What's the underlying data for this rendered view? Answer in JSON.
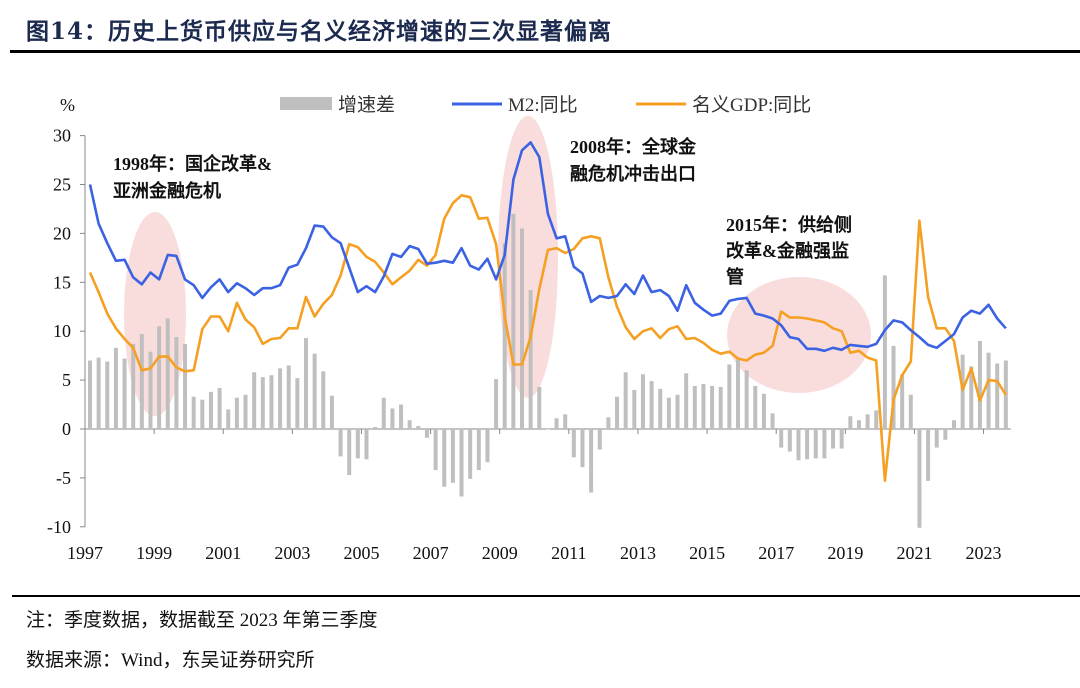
{
  "title": "图14：历史上货币供应与名义经济增速的三次显著偏离",
  "footer": {
    "note": "注：季度数据，数据截至 2023 年第三季度",
    "source": "数据来源：Wind，东吴证券研究所"
  },
  "colors": {
    "m2": "#3b62e3",
    "gdp": "#f5a022",
    "diff": "#bfbfbf",
    "highlight": "#f7d4d4",
    "title": "#1b2a4e"
  },
  "chart_data": {
    "type": "bar+line",
    "title": "",
    "ylabel": "%",
    "xlabel": "",
    "ylim": [
      -10,
      30
    ],
    "yticks": [
      30,
      25,
      20,
      15,
      10,
      5,
      0,
      -5,
      -10
    ],
    "xticks": [
      "1997",
      "1999",
      "2001",
      "2003",
      "2005",
      "2007",
      "2009",
      "2011",
      "2013",
      "2015",
      "2017",
      "2019",
      "2021",
      "2023"
    ],
    "start_quarter": "1997Q1",
    "frequency": "quarterly",
    "legend_position": "top",
    "series": [
      {
        "name": "增速差",
        "kind": "bar",
        "values": [
          7.0,
          7.3,
          6.9,
          8.3,
          7.2,
          8.7,
          9.7,
          7.9,
          10.5,
          11.3,
          9.4,
          8.7,
          3.3,
          3.0,
          3.8,
          4.2,
          2.0,
          3.2,
          3.5,
          5.8,
          5.3,
          5.5,
          6.2,
          6.5,
          5.2,
          9.3,
          7.7,
          5.9,
          3.4,
          -2.8,
          -4.7,
          -3.0,
          -3.1,
          0.2,
          3.2,
          2.1,
          2.5,
          0.9,
          0.3,
          -0.9,
          -4.2,
          -5.9,
          -5.5,
          -6.9,
          -5.1,
          -4.2,
          -3.4,
          5.1,
          19.0,
          22.0,
          20.5,
          14.2,
          4.3,
          0.0,
          1.1,
          1.5,
          -2.9,
          -3.9,
          -6.5,
          -2.1,
          1.2,
          3.3,
          5.8,
          4.0,
          5.6,
          4.9,
          4.1,
          3.2,
          3.5,
          5.7,
          4.4,
          4.6,
          4.4,
          4.3,
          6.6,
          7.1,
          6.0,
          4.4,
          3.6,
          1.6,
          -1.9,
          -2.3,
          -3.2,
          -3.1,
          -3.0,
          -3.0,
          -2.0,
          -2.0,
          1.3,
          0.9,
          1.5,
          1.9,
          15.7,
          8.5,
          5.6,
          3.5,
          -10.1,
          -5.3,
          -1.9,
          -1.1,
          0.9,
          7.6,
          6.4,
          9.0,
          7.8,
          6.7,
          7.0
        ]
      },
      {
        "name": "M2:同比",
        "kind": "line",
        "values": [
          25,
          21,
          19,
          17.2,
          17.3,
          15.5,
          14.8,
          16,
          15.3,
          17.8,
          17.7,
          15.3,
          14.7,
          13.4,
          14.5,
          15.3,
          14,
          14.9,
          14.4,
          13.7,
          14.4,
          14.4,
          14.7,
          16.5,
          16.8,
          18.5,
          20.8,
          20.7,
          19.6,
          19,
          16.5,
          14,
          14.6,
          14,
          15.6,
          17.9,
          17.6,
          18.7,
          18.4,
          16.9,
          17,
          17.2,
          17,
          18.5,
          16.7,
          16.3,
          17.4,
          15.3,
          17.8,
          25.5,
          28.5,
          29.3,
          27.8,
          22,
          19.5,
          19.7,
          16.6,
          15.9,
          13,
          13.6,
          13.4,
          13.6,
          14.8,
          13.8,
          15.7,
          14,
          14.2,
          13.6,
          12.1,
          14.7,
          12.9,
          12.2,
          11.6,
          11.8,
          13.1,
          13.3,
          13.4,
          11.8,
          11.6,
          11.3,
          10.6,
          9.4,
          9.2,
          8.2,
          8.2,
          8.0,
          8.3,
          8.1,
          8.6,
          8.5,
          8.4,
          8.7,
          10.1,
          11.1,
          10.9,
          10.1,
          9.4,
          8.6,
          8.3,
          9.0,
          9.7,
          11.4,
          12.1,
          11.8,
          12.7,
          11.3,
          10.3
        ]
      },
      {
        "name": "名义GDP:同比",
        "kind": "line",
        "values": [
          16,
          14,
          11.8,
          10.3,
          9.2,
          8.3,
          6,
          6.2,
          7.4,
          7.4,
          6.3,
          5.9,
          6,
          10.2,
          11.5,
          11.5,
          10,
          12.9,
          11.2,
          10.4,
          8.7,
          9.2,
          9.3,
          10.3,
          10.3,
          13.5,
          11.5,
          12.8,
          13.7,
          15.7,
          18.9,
          18.6,
          17.6,
          17.1,
          16,
          14.8,
          15.5,
          16.2,
          17.3,
          16.7,
          17.8,
          21.5,
          23.1,
          23.9,
          23.7,
          21.5,
          21.6,
          18.9,
          11.5,
          6.6,
          6.6,
          9.4,
          14.3,
          18.3,
          18.5,
          18,
          18.4,
          19.5,
          19.7,
          19.5,
          15.5,
          12.5,
          10.4,
          9.2,
          10,
          10.3,
          9.3,
          10.2,
          10.5,
          9.2,
          9.3,
          8.8,
          8.1,
          7.7,
          7.9,
          7.2,
          7.0,
          7.6,
          7.8,
          8.5,
          12.0,
          11.4,
          11.4,
          11.3,
          11.1,
          10.9,
          10.3,
          10.0,
          7.8,
          8.0,
          7.3,
          7.0,
          -5.3,
          3.0,
          5.5,
          6.9,
          21.3,
          13.5,
          10.3,
          10.3,
          9.0,
          4.0,
          6.2,
          2.9,
          5.0,
          4.9,
          3.5
        ]
      }
    ],
    "annotations": [
      {
        "lines": [
          "1998年：国企改革&",
          "亚洲金融危机"
        ]
      },
      {
        "lines": [
          "2008年：全球金",
          "融危机冲击出口"
        ]
      },
      {
        "lines": [
          "2015年：供给侧",
          "改革&金融强监",
          "管"
        ]
      }
    ]
  }
}
